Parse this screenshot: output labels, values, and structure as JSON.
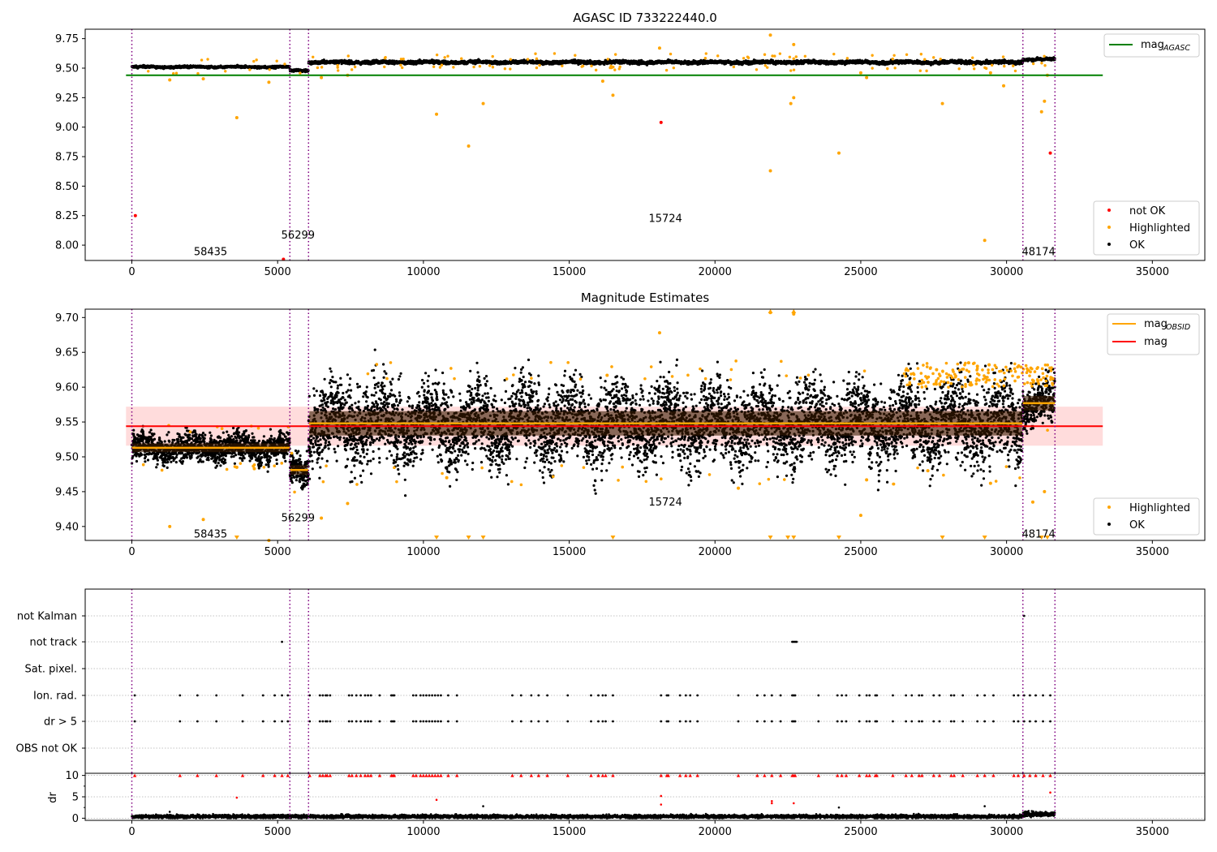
{
  "chart_data": [
    {
      "type": "scatter",
      "title": "AGASC ID 733222440.0",
      "xlabel": "",
      "ylabel": "",
      "xlim": [
        -1600,
        36800
      ],
      "ylim": [
        7.87,
        9.83
      ],
      "x_ticks": [
        0,
        5000,
        10000,
        15000,
        20000,
        25000,
        30000,
        35000
      ],
      "y_ticks": [
        8.0,
        8.25,
        8.5,
        8.75,
        9.0,
        9.25,
        9.5,
        9.75
      ],
      "y_tick_labels": [
        "8.00",
        "8.25",
        "8.50",
        "8.75",
        "9.00",
        "9.25",
        "9.50",
        "9.75"
      ],
      "grid": false,
      "vlines": [
        0,
        5420,
        6060,
        30560,
        31660
      ],
      "obsid_labels": [
        {
          "text": "58435",
          "x": 2700,
          "y": 7.95
        },
        {
          "text": "56299",
          "x": 5700,
          "y": 8.09
        },
        {
          "text": "15724",
          "x": 18300,
          "y": 8.23
        },
        {
          "text": "48174",
          "x": 31100,
          "y": 7.95
        }
      ],
      "hlines": [
        {
          "name": "mag_AGASC",
          "y": 9.44,
          "x_range": [
            -200,
            33300
          ],
          "color": "#008000"
        }
      ],
      "segments": [
        {
          "x": [
            0,
            5420
          ],
          "level": 9.51,
          "spread": 0.008
        },
        {
          "x": [
            5420,
            6060
          ],
          "level": 9.48,
          "spread": 0.01
        },
        {
          "x": [
            6060,
            30560
          ],
          "level": 9.55,
          "spread": 0.012
        },
        {
          "x": [
            30560,
            31660
          ],
          "level": 9.575,
          "spread": 0.01
        }
      ],
      "highlighted_points": [
        [
          1300,
          9.4
        ],
        [
          2450,
          9.41
        ],
        [
          3600,
          9.08
        ],
        [
          4700,
          9.38
        ],
        [
          6500,
          9.42
        ],
        [
          7400,
          9.44
        ],
        [
          10450,
          9.11
        ],
        [
          11550,
          8.84
        ],
        [
          12050,
          9.2
        ],
        [
          16150,
          9.39
        ],
        [
          16500,
          9.27
        ],
        [
          18100,
          9.67
        ],
        [
          21900,
          9.78
        ],
        [
          21900,
          8.63
        ],
        [
          22600,
          9.2
        ],
        [
          22700,
          9.7
        ],
        [
          22700,
          9.25
        ],
        [
          24250,
          8.78
        ],
        [
          25000,
          9.46
        ],
        [
          25200,
          9.42
        ],
        [
          27800,
          9.2
        ],
        [
          29250,
          8.04
        ],
        [
          29450,
          9.46
        ],
        [
          29900,
          9.35
        ],
        [
          31200,
          9.13
        ],
        [
          31300,
          9.22
        ],
        [
          31400,
          9.44
        ]
      ],
      "not_ok_points": [
        [
          120,
          8.25
        ],
        [
          5200,
          7.88
        ],
        [
          18150,
          9.04
        ],
        [
          31500,
          8.78
        ]
      ],
      "legend_top": {
        "position": "top-right",
        "entries": [
          {
            "label": "mag",
            "sub": "AGASC",
            "color": "#008000"
          }
        ]
      },
      "legend_bottom": {
        "position": "lower-right",
        "entries": [
          {
            "label": "not OK",
            "color": "#ff0000"
          },
          {
            "label": "Highlighted",
            "color": "#ffa500"
          },
          {
            "label": "OK",
            "color": "#000000"
          }
        ]
      }
    },
    {
      "type": "scatter",
      "title": "Magnitude Estimates",
      "xlabel": "",
      "ylabel": "",
      "xlim": [
        -1600,
        36800
      ],
      "ylim": [
        9.38,
        9.712
      ],
      "x_ticks": [
        0,
        5000,
        10000,
        15000,
        20000,
        25000,
        30000,
        35000
      ],
      "y_ticks": [
        9.4,
        9.45,
        9.5,
        9.55,
        9.6,
        9.65,
        9.7
      ],
      "y_tick_labels": [
        "9.40",
        "9.45",
        "9.50",
        "9.55",
        "9.60",
        "9.65",
        "9.70"
      ],
      "grid": false,
      "vlines": [
        0,
        5420,
        6060,
        30560,
        31660
      ],
      "obsid_labels": [
        {
          "text": "58435",
          "x": 2700,
          "y": 9.39
        },
        {
          "text": "56299",
          "x": 5700,
          "y": 9.413
        },
        {
          "text": "15724",
          "x": 18300,
          "y": 9.436
        },
        {
          "text": "48174",
          "x": 31100,
          "y": 9.39
        }
      ],
      "mag_line": {
        "y": 9.544,
        "band": [
          9.516,
          9.572
        ],
        "x_range": [
          -200,
          33300
        ],
        "color": "#ff0000",
        "band_color": "#ffc0c0"
      },
      "obsid_mags": [
        {
          "x": [
            0,
            5420
          ],
          "y": 9.513
        },
        {
          "x": [
            5420,
            6060
          ],
          "y": 9.481
        },
        {
          "x": [
            6060,
            30560
          ],
          "y": 9.548
        },
        {
          "x": [
            30560,
            31660
          ],
          "y": 9.577
        }
      ],
      "segments": [
        {
          "x": [
            0,
            5420
          ],
          "level": 9.513,
          "spread": 0.018
        },
        {
          "x": [
            5420,
            6060
          ],
          "level": 9.481,
          "spread": 0.02
        },
        {
          "x": [
            6060,
            30560
          ],
          "level": 9.548,
          "spread": 0.05
        },
        {
          "x": [
            30560,
            31660
          ],
          "level": 9.577,
          "spread": 0.03
        }
      ],
      "highlighted_points": [
        [
          1300,
          9.4
        ],
        [
          2450,
          9.41
        ],
        [
          4700,
          9.38
        ],
        [
          6500,
          9.412
        ],
        [
          7400,
          9.433
        ],
        [
          10800,
          9.47
        ],
        [
          16300,
          9.617
        ],
        [
          18100,
          9.678
        ],
        [
          20800,
          9.455
        ],
        [
          25200,
          9.467
        ],
        [
          25000,
          9.416
        ],
        [
          27300,
          9.48
        ],
        [
          29450,
          9.462
        ],
        [
          30900,
          9.435
        ],
        [
          31300,
          9.45
        ],
        [
          21900,
          9.707
        ],
        [
          22700,
          9.705
        ],
        [
          3600,
          9.485
        ],
        [
          4200,
          9.483
        ],
        [
          28700,
          9.635
        ],
        [
          29000,
          9.63
        ],
        [
          29400,
          9.632
        ],
        [
          27600,
          9.625
        ]
      ],
      "clipped_low_x": [
        3600,
        10450,
        11550,
        12050,
        16500,
        21900,
        22500,
        22700,
        24250,
        27800,
        29250,
        31200,
        31400
      ],
      "clipped_high_x": [
        21900,
        22700
      ],
      "legend_top": {
        "position": "top-right",
        "entries": [
          {
            "label": "mag",
            "sub": "OBSID",
            "color": "#ffa500"
          },
          {
            "label": "mag",
            "sub": "",
            "color": "#ff0000"
          }
        ]
      },
      "legend_bottom": {
        "position": "lower-right",
        "entries": [
          {
            "label": "Highlighted",
            "color": "#ffa500"
          },
          {
            "label": "OK",
            "color": "#000000"
          }
        ]
      }
    },
    {
      "type": "scatter",
      "title": "",
      "xlim": [
        -1600,
        36800
      ],
      "categories": [
        "not Kalman",
        "not track",
        "Sat. pixel.",
        "Ion. rad.",
        "dr > 5",
        "OBS not OK"
      ],
      "flag_events": {
        "Ion. rad.": [
          100,
          1650,
          2250,
          2900,
          3800,
          4500,
          4900,
          5150,
          5350,
          6100,
          6450,
          6550,
          6650,
          6700,
          6800,
          7450,
          7550,
          7700,
          7850,
          8000,
          8100,
          8200,
          8500,
          8900,
          8950,
          9000,
          9650,
          9750,
          9900,
          10000,
          10100,
          10200,
          10300,
          10400,
          10500,
          10600,
          10850,
          11150,
          13050,
          13350,
          13700,
          13950,
          14250,
          14950,
          15750,
          16000,
          16150,
          16250,
          16500,
          18150,
          18350,
          18400,
          18800,
          19000,
          19150,
          19400,
          20800,
          21450,
          21700,
          21950,
          22250,
          22650,
          22700,
          22750,
          23550,
          24200,
          24350,
          24500,
          24950,
          25200,
          25300,
          25500,
          25550,
          26100,
          26550,
          26750,
          27000,
          27100,
          27500,
          27700,
          28100,
          28200,
          28500,
          29000,
          29250,
          29550,
          30250,
          30400,
          30600,
          30800,
          31000,
          31250,
          31500
        ],
        "dr > 5": [
          100,
          1650,
          2250,
          2900,
          3800,
          4500,
          4900,
          5150,
          5350,
          6100,
          6450,
          6550,
          6650,
          6700,
          6800,
          7450,
          7550,
          7700,
          7850,
          8000,
          8100,
          8200,
          8500,
          8900,
          8950,
          9000,
          9650,
          9750,
          9900,
          10000,
          10100,
          10200,
          10300,
          10400,
          10500,
          10600,
          10850,
          11150,
          13050,
          13350,
          13700,
          13950,
          14250,
          14950,
          15750,
          16000,
          16150,
          16250,
          16500,
          18150,
          18350,
          18400,
          18800,
          19000,
          19150,
          19400,
          20800,
          21450,
          21700,
          21950,
          22250,
          22650,
          22700,
          22750,
          23550,
          24200,
          24350,
          24500,
          24950,
          25200,
          25300,
          25500,
          25550,
          26100,
          26550,
          26750,
          27000,
          27100,
          27500,
          27700,
          28100,
          28200,
          28500,
          29000,
          29250,
          29550,
          30250,
          30400,
          30600,
          30800,
          31000,
          31250,
          31500
        ],
        "not track": [
          5150,
          22650,
          22700,
          22750,
          22800
        ],
        "not Kalman": [
          30600
        ],
        "Sat. pixel.": [],
        "OBS not OK": []
      },
      "vlines": [
        0,
        5420,
        6060,
        30560,
        31660
      ]
    },
    {
      "type": "scatter",
      "title": "",
      "xlabel": "",
      "ylabel": "dr",
      "xlim": [
        -1600,
        36800
      ],
      "ylim": [
        -0.5,
        10.5
      ],
      "x_ticks": [
        0,
        5000,
        10000,
        15000,
        20000,
        25000,
        30000,
        35000
      ],
      "y_ticks": [
        0,
        5,
        10
      ],
      "clip_at": 10,
      "baseline": {
        "level": 0.4,
        "spread": 0.35,
        "late_segment": {
          "x": [
            30560,
            31660
          ],
          "level": 1.0,
          "spread": 0.5
        }
      },
      "dr_outliers": [
        [
          1300,
          1.5
        ],
        [
          3600,
          4.8
        ],
        [
          10450,
          4.3
        ],
        [
          12050,
          2.8
        ],
        [
          18150,
          5.2
        ],
        [
          18150,
          3.2
        ],
        [
          21950,
          4.0
        ],
        [
          21950,
          3.5
        ],
        [
          22700,
          3.5
        ],
        [
          24250,
          2.5
        ],
        [
          29250,
          2.8
        ],
        [
          31500,
          6.0
        ]
      ],
      "vlines": [
        0,
        5420,
        6060,
        30560,
        31660
      ]
    }
  ]
}
